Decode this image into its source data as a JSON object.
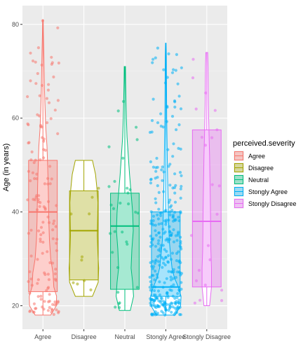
{
  "chart_data": {
    "type": "box",
    "ylabel": "Age (in years)",
    "ylim": [
      15,
      84
    ],
    "yticks": [
      20,
      40,
      60,
      80
    ],
    "categories": [
      "Agree",
      "Disagree",
      "Neutral",
      "Stongly Agree",
      "Stongly Disagree"
    ],
    "legend": {
      "title": "perceived.severity",
      "position": "right",
      "entries": [
        "Agree",
        "Disagree",
        "Neutral",
        "Stongly Agree",
        "Stongly Disagree"
      ]
    },
    "grid": true,
    "layers": [
      "violin",
      "boxplot",
      "jittered points"
    ],
    "colors": [
      "#F8766D",
      "#A3A500",
      "#00BF7D",
      "#00B0F6",
      "#E76BF3"
    ],
    "boxes": [
      {
        "name": "Agree",
        "min": 18,
        "q1": 23,
        "median": 40,
        "q3": 51,
        "max": 81
      },
      {
        "name": "Disagree",
        "min": 22,
        "q1": 25.5,
        "median": 36,
        "q3": 44.5,
        "max": 51
      },
      {
        "name": "Neutral",
        "min": 19,
        "q1": 23.5,
        "median": 37,
        "q3": 44,
        "max": 71
      },
      {
        "name": "Stongly Agree",
        "min": 18,
        "q1": 22,
        "median": 24,
        "q3": 40,
        "max": 76
      },
      {
        "name": "Stongly Disagree",
        "min": 20,
        "q1": 24,
        "median": 38,
        "q3": 57.5,
        "max": 74
      }
    ]
  }
}
